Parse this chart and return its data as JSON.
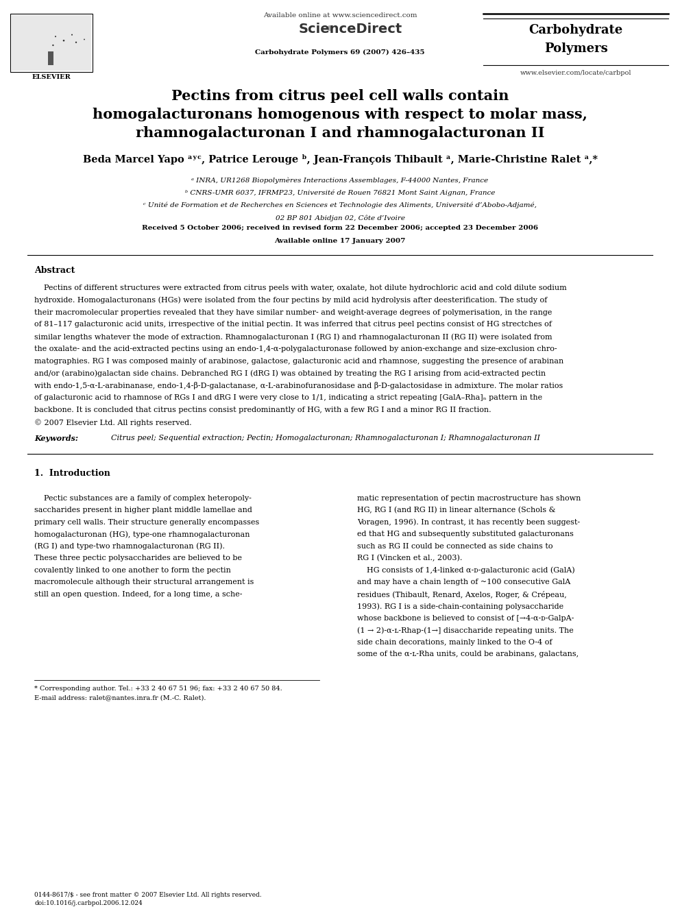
{
  "bg_color": "#ffffff",
  "page_width": 9.92,
  "page_height": 13.23,
  "dpi": 100,
  "header_available": "Available online at www.sciencedirect.com",
  "header_journal_info": "Carbohydrate Polymers 69 (2007) 426–435",
  "header_journal_name1": "Carbohydrate",
  "header_journal_name2": "Polymers",
  "header_website": "www.elsevier.com/locate/carbpol",
  "title_line1": "Pectins from citrus peel cell walls contain",
  "title_line2": "homogalacturonans homogenous with respect to molar mass,",
  "title_line3": "rhamnogalacturonan I and rhamnogalacturonan II",
  "authors_line": "Beda Marcel Yapo ᵃʸᶜ, Patrice Lerouge ᵇ, Jean-François Thibault ᵃ, Marie-Christine Ralet ᵃ,*",
  "affil_a": "ᵃ INRA, UR1268 Biopolymères Interactions Assemblages, F-44000 Nantes, France",
  "affil_b": "ᵇ CNRS-UMR 6037, IFRMP23, Université de Rouen 76821 Mont Saint Aignan, France",
  "affil_c": "ᶜ Unité de Formation et de Recherches en Sciences et Technologie des Aliments, Université d’Abobo-Adjamé,",
  "affil_c2": "02 BP 801 Abidjan 02, Côte d’Ivoire",
  "received": "Received 5 October 2006; received in revised form 22 December 2006; accepted 23 December 2006",
  "available_online": "Available online 17 January 2007",
  "abstract_title": "Abstract",
  "abstract_body": "    Pectins of different structures were extracted from citrus peels with water, oxalate, hot dilute hydrochloric acid and cold dilute sodium\nhydroxide. Homogalacturonans (HGs) were isolated from the four pectins by mild acid hydrolysis after deesterification. The study of\ntheir macromolecular properties revealed that they have similar number- and weight-average degrees of polymerisation, in the range\nof 81–117 galacturonic acid units, irrespective of the initial pectin. It was inferred that citrus peel pectins consist of HG strectches of\nsimilar lengths whatever the mode of extraction. Rhamnogalacturonan I (RG I) and rhamnogalacturonan II (RG II) were isolated from\nthe oxalate- and the acid-extracted pectins using an endo-1,4-α-polygalacturonase followed by anion-exchange and size-exclusion chro-\nmatographies. RG I was composed mainly of arabinose, galactose, galacturonic acid and rhamnose, suggesting the presence of arabinan\nand/or (arabino)galactan side chains. Debranched RG I (dRG I) was obtained by treating the RG I arising from acid-extracted pectin\nwith endo-1,5-α-L-arabinanase, endo-1,4-β-D-galactanase, α-L-arabinofuranosidase and β-D-galactosidase in admixture. The molar ratios\nof galacturonic acid to rhamnose of RGs I and dRG I were very close to 1/1, indicating a strict repeating [GalA–Rha]ₙ pattern in the\nbackbone. It is concluded that citrus pectins consist predominantly of HG, with a few RG I and a minor RG II fraction.\n© 2007 Elsevier Ltd. All rights reserved.",
  "keywords_label": "Keywords:",
  "keywords_body": "  Citrus peel; Sequential extraction; Pectin; Homogalacturonan; Rhamnogalacturonan I; Rhamnogalacturonan II",
  "intro_title": "1.  Introduction",
  "intro_col1_lines": [
    "    Pectic substances are a family of complex heteropoly-",
    "saccharides present in higher plant middle lamellae and",
    "primary cell walls. Their structure generally encompasses",
    "homogalacturonan (HG), type-one rhamnogalacturonan",
    "(RG I) and type-two rhamnogalacturonan (RG II).",
    "These three pectic polysaccharides are believed to be",
    "covalently linked to one another to form the pectin",
    "macromolecule although their structural arrangement is",
    "still an open question. Indeed, for a long time, a sche-"
  ],
  "intro_col2_lines": [
    "matic representation of pectin macrostructure has shown",
    "HG, RG I (and RG II) in linear alternance (Schols &",
    "Voragen, 1996). In contrast, it has recently been suggest-",
    "ed that HG and subsequently substituted galacturonans",
    "such as RG II could be connected as side chains to",
    "RG I (Vincken et al., 2003).",
    "    HG consists of 1,4-linked α-ᴅ-galacturonic acid (GalA)",
    "and may have a chain length of ~100 consecutive GalA",
    "residues (Thibault, Renard, Axelos, Roger, & Crépeau,",
    "1993). RG I is a side-chain-containing polysaccharide",
    "whose backbone is believed to consist of [→4-α-ᴅ-GalpA-",
    "(1 → 2)-α-ʟ-Rhap-(1→] disaccharide repeating units. The",
    "side chain decorations, mainly linked to the O-4 of",
    "some of the α-ʟ-Rha units, could be arabinans, galactans,"
  ],
  "footnote_line1": "* Corresponding author. Tel.: +33 2 40 67 51 96; fax: +33 2 40 67 50 84.",
  "footnote_line2": "E-mail address: ralet@nantes.inra.fr (M.-C. Ralet).",
  "footer_line1": "0144-8617/$ - see front matter © 2007 Elsevier Ltd. All rights reserved.",
  "footer_line2": "doi:10.1016/j.carbpol.2006.12.024"
}
